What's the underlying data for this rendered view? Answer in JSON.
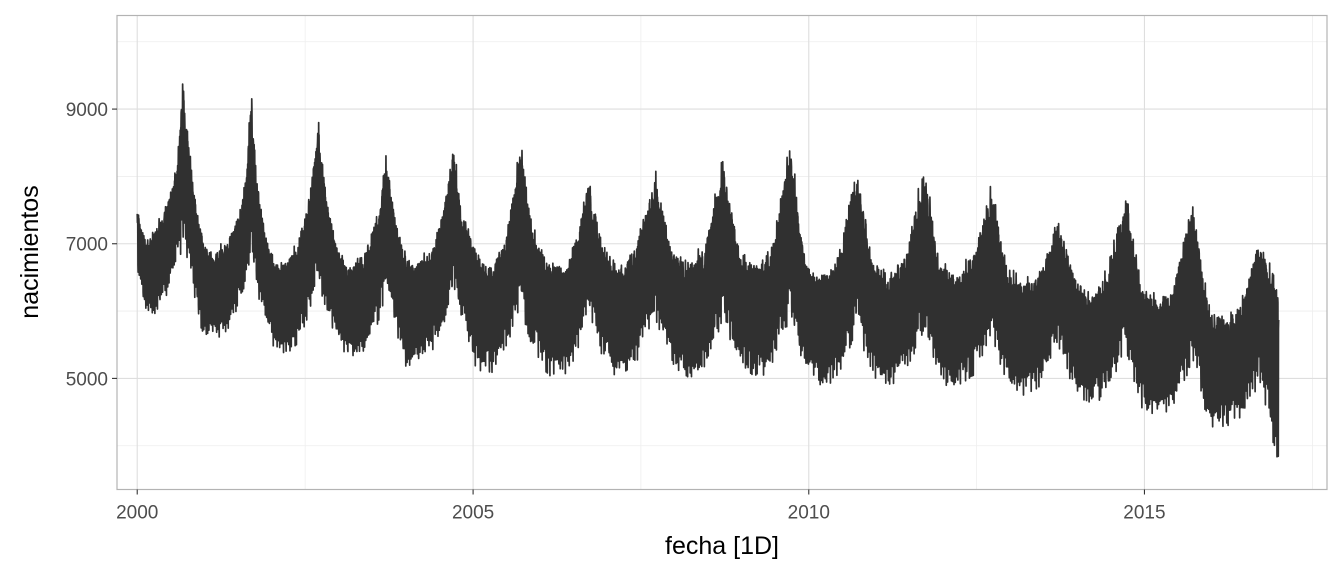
{
  "chart_data": {
    "type": "line",
    "xlabel": "fecha [1D]",
    "ylabel": "nacimientos",
    "x_ticks": [
      "2000",
      "2005",
      "2010",
      "2015"
    ],
    "y_ticks": [
      "5000",
      "7000",
      "9000"
    ],
    "xlim": [
      "1999-09-13",
      "2017-09-20"
    ],
    "ylim": [
      3350,
      10390
    ],
    "grid": true,
    "legend": "none",
    "colors": {
      "line": "#303030",
      "grid": "#dedede",
      "border": "#b3b3b3",
      "background": "#ffffff"
    },
    "frequency": "daily",
    "date_range": [
      "2000-01-01",
      "2016-12-31"
    ],
    "series": [
      {
        "note_points": "daily series summarized by weekly envelope: [date, min, max]",
        "weekly_envelope": [
          [
            "2000-01-01",
            6400,
            7550
          ],
          [
            "2000-02-15",
            5950,
            7100
          ],
          [
            "2000-04-01",
            5800,
            7250
          ],
          [
            "2000-05-15",
            5950,
            7500
          ],
          [
            "2000-06-15",
            6150,
            7700
          ],
          [
            "2000-07-15",
            6400,
            8000
          ],
          [
            "2000-08-10",
            6600,
            8400
          ],
          [
            "2000-09-05",
            6750,
            9580
          ],
          [
            "2000-09-20",
            6700,
            9100
          ],
          [
            "2000-10-15",
            6500,
            8400
          ],
          [
            "2000-11-15",
            6000,
            7600
          ],
          [
            "2000-12-20",
            5550,
            7200
          ],
          [
            "2001-01-20",
            5500,
            7000
          ],
          [
            "2001-03-01",
            5450,
            6900
          ],
          [
            "2001-05-01",
            5600,
            7100
          ],
          [
            "2001-07-01",
            5900,
            7500
          ],
          [
            "2001-08-15",
            6200,
            8000
          ],
          [
            "2001-09-12",
            6450,
            9500
          ],
          [
            "2001-10-10",
            6200,
            8100
          ],
          [
            "2001-11-15",
            5800,
            7400
          ],
          [
            "2002-01-15",
            5350,
            6800
          ],
          [
            "2002-03-15",
            5250,
            6800
          ],
          [
            "2002-05-15",
            5350,
            7000
          ],
          [
            "2002-07-15",
            5700,
            7600
          ],
          [
            "2002-09-10",
            6200,
            8900
          ],
          [
            "2002-10-20",
            5900,
            7900
          ],
          [
            "2002-12-15",
            5400,
            7100
          ],
          [
            "2003-02-15",
            5150,
            6800
          ],
          [
            "2003-05-15",
            5250,
            6900
          ],
          [
            "2003-08-01",
            5650,
            7500
          ],
          [
            "2003-09-15",
            6050,
            8400
          ],
          [
            "2003-11-01",
            5700,
            7500
          ],
          [
            "2003-12-20",
            5050,
            7000
          ],
          [
            "2004-02-15",
            5100,
            6800
          ],
          [
            "2004-05-15",
            5250,
            6900
          ],
          [
            "2004-08-01",
            5650,
            7700
          ],
          [
            "2004-09-15",
            6050,
            8600
          ],
          [
            "2004-11-01",
            5700,
            7600
          ],
          [
            "2005-01-15",
            5000,
            7000
          ],
          [
            "2005-04-15",
            4950,
            6700
          ],
          [
            "2005-07-15",
            5400,
            7400
          ],
          [
            "2005-09-15",
            5900,
            8650
          ],
          [
            "2005-11-15",
            5350,
            7300
          ],
          [
            "2006-02-15",
            4900,
            6800
          ],
          [
            "2006-05-15",
            4850,
            6700
          ],
          [
            "2006-08-01",
            5250,
            7300
          ],
          [
            "2006-09-20",
            5750,
            8050
          ],
          [
            "2006-12-01",
            5200,
            7100
          ],
          [
            "2007-03-01",
            4850,
            6700
          ],
          [
            "2007-06-01",
            5000,
            7000
          ],
          [
            "2007-09-20",
            5700,
            8100
          ],
          [
            "2007-12-15",
            5100,
            7000
          ],
          [
            "2008-03-15",
            4850,
            6800
          ],
          [
            "2008-06-15",
            5000,
            7000
          ],
          [
            "2008-09-20",
            5700,
            8300
          ],
          [
            "2008-12-15",
            5050,
            7000
          ],
          [
            "2009-03-15",
            4850,
            6750
          ],
          [
            "2009-06-15",
            5000,
            7000
          ],
          [
            "2009-09-20",
            5700,
            8600
          ],
          [
            "2009-12-15",
            4900,
            6800
          ],
          [
            "2010-03-15",
            4700,
            6600
          ],
          [
            "2010-06-15",
            4900,
            6950
          ],
          [
            "2010-09-20",
            5550,
            8200
          ],
          [
            "2010-12-15",
            4900,
            6800
          ],
          [
            "2011-03-15",
            4750,
            6650
          ],
          [
            "2011-06-15",
            4950,
            6900
          ],
          [
            "2011-09-20",
            5550,
            8250
          ],
          [
            "2011-12-15",
            4800,
            6750
          ],
          [
            "2012-03-15",
            4700,
            6600
          ],
          [
            "2012-06-15",
            4900,
            6900
          ],
          [
            "2012-09-20",
            5500,
            7900
          ],
          [
            "2012-12-15",
            4750,
            6700
          ],
          [
            "2013-03-15",
            4600,
            6450
          ],
          [
            "2013-06-15",
            4750,
            6700
          ],
          [
            "2013-09-20",
            5350,
            7450
          ],
          [
            "2013-12-15",
            4650,
            6600
          ],
          [
            "2014-03-15",
            4450,
            6300
          ],
          [
            "2014-06-15",
            4650,
            6650
          ],
          [
            "2014-09-20",
            5250,
            7800
          ],
          [
            "2014-12-15",
            4400,
            6500
          ],
          [
            "2015-03-15",
            4300,
            6200
          ],
          [
            "2015-06-15",
            4450,
            6500
          ],
          [
            "2015-09-20",
            5050,
            7700
          ],
          [
            "2015-12-15",
            4150,
            6100
          ],
          [
            "2016-03-15",
            4150,
            5950
          ],
          [
            "2016-06-15",
            4300,
            6200
          ],
          [
            "2016-09-20",
            4750,
            7150
          ],
          [
            "2016-12-31",
            3450,
            6450
          ]
        ]
      }
    ]
  }
}
